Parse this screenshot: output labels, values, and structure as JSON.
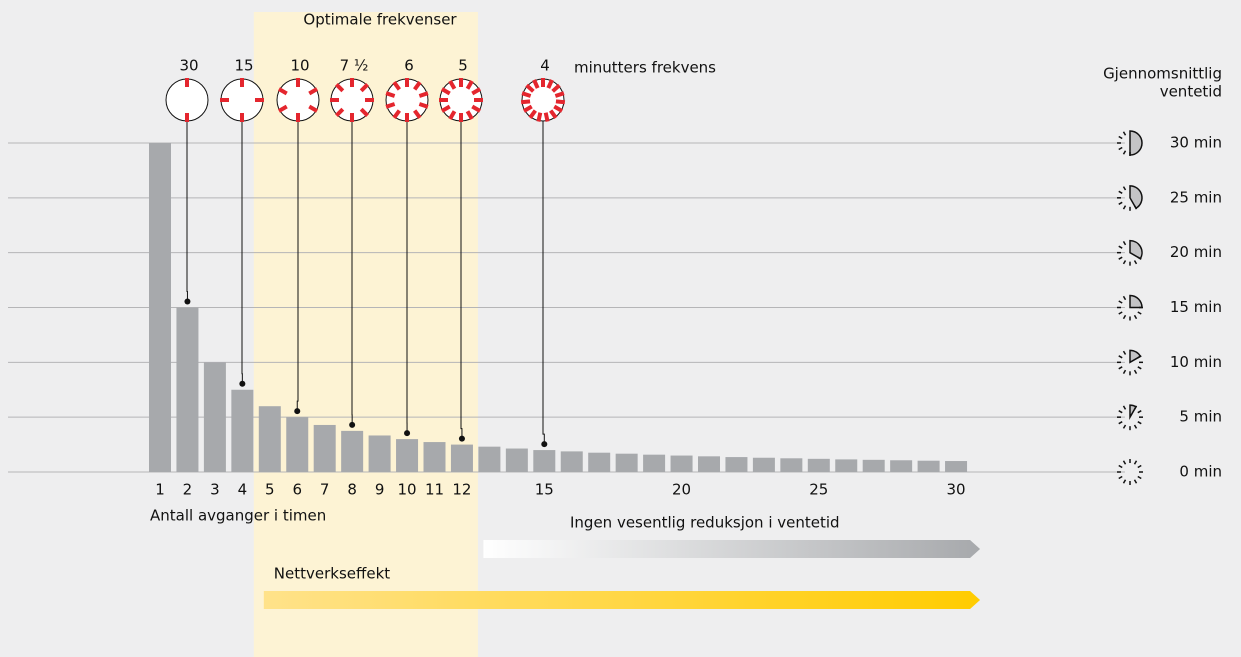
{
  "chart_data": {
    "type": "bar",
    "title": "Optimale frekvenser",
    "x_label": "Antall avganger i timen",
    "y_label": [
      "Gjennomsnittlig",
      "ventetid"
    ],
    "categories": [
      "1",
      "2",
      "3",
      "4",
      "5",
      "6",
      "7",
      "8",
      "9",
      "10",
      "11",
      "12",
      null,
      null,
      "15",
      null,
      null,
      null,
      null,
      "20",
      null,
      null,
      null,
      null,
      "25",
      null,
      null,
      null,
      null,
      "30"
    ],
    "values": [
      30,
      15,
      10,
      7.5,
      6,
      5,
      4.29,
      3.75,
      3.33,
      3,
      2.73,
      2.5,
      2.31,
      2.14,
      2,
      1.88,
      1.76,
      1.67,
      1.58,
      1.5,
      1.43,
      1.36,
      1.3,
      1.25,
      1.2,
      1.15,
      1.11,
      1.07,
      1.03,
      1
    ],
    "color": "#a7a9ac",
    "ylim": [
      0,
      30
    ],
    "yticks": [
      {
        "value": 0,
        "label": "0 min"
      },
      {
        "value": 5,
        "label": "5 min"
      },
      {
        "value": 10,
        "label": "10 min"
      },
      {
        "value": 15,
        "label": "15 min"
      },
      {
        "value": 20,
        "label": "20 min"
      },
      {
        "value": 25,
        "label": "25 min"
      },
      {
        "value": 30,
        "label": "30 min"
      }
    ],
    "grid": true,
    "frequency_label": "minutters frekvens",
    "frequencies": [
      {
        "label": "30",
        "departures": 2
      },
      {
        "label": "15",
        "departures": 4
      },
      {
        "label": "10",
        "departures": 6
      },
      {
        "label": "7 ½",
        "departures": 8
      },
      {
        "label": "6",
        "departures": 10
      },
      {
        "label": "5",
        "departures": 12
      },
      {
        "label": "4",
        "departures": 15
      }
    ],
    "optimal_range": [
      5,
      12
    ],
    "arrows": [
      {
        "label": "Ingen vesentlig reduksjon i ventetid",
        "from": 13,
        "to": 30
      },
      {
        "label": "Nettverkseffekt",
        "from": 5,
        "to": 30
      }
    ]
  }
}
